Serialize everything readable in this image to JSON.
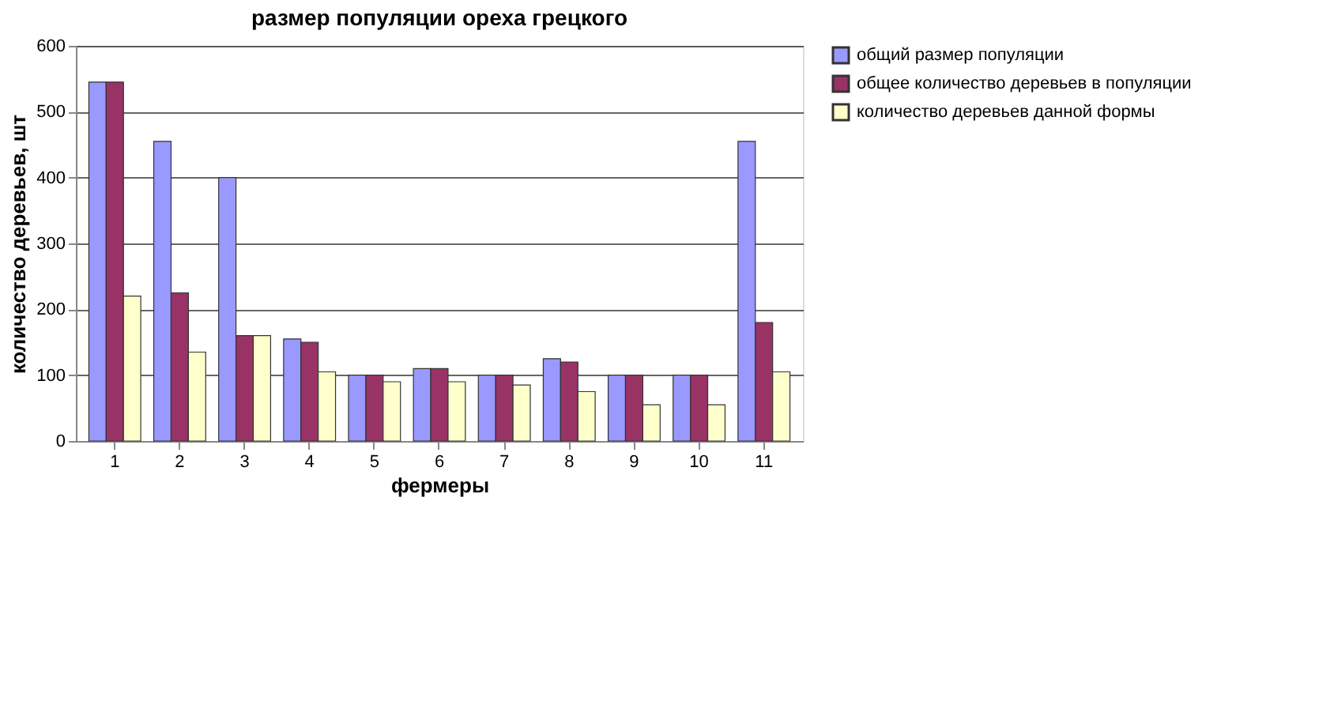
{
  "chart_data": {
    "type": "bar",
    "title": "размер популяции ореха грецкого",
    "xlabel": "фермеры",
    "ylabel": "количество деревьев, шт",
    "categories": [
      "1",
      "2",
      "3",
      "4",
      "5",
      "6",
      "7",
      "8",
      "9",
      "10",
      "11"
    ],
    "series": [
      {
        "name": "общий размер популяции",
        "color": "#9999ff",
        "values": [
          545,
          455,
          400,
          155,
          100,
          110,
          100,
          125,
          100,
          100,
          455
        ]
      },
      {
        "name": "общее количество деревьев в популяции",
        "color": "#993366",
        "values": [
          545,
          225,
          160,
          150,
          100,
          110,
          100,
          120,
          100,
          100,
          180
        ]
      },
      {
        "name": "количество деревьев данной формы",
        "color": "#ffffcc",
        "values": [
          220,
          135,
          160,
          105,
          90,
          90,
          85,
          75,
          55,
          55,
          105
        ]
      }
    ],
    "ylim": [
      0,
      600
    ],
    "yticks": [
      0,
      100,
      200,
      300,
      400,
      500,
      600
    ],
    "grid": "y",
    "legend": "right"
  }
}
